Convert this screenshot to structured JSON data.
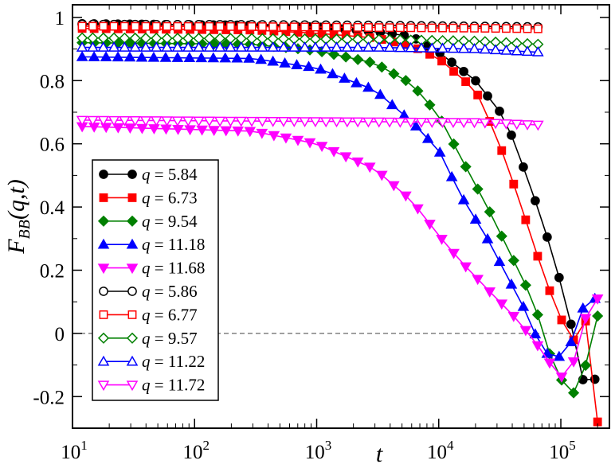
{
  "chart_data": {
    "type": "line",
    "title": "",
    "xlabel": "t",
    "ylabel": "F_BB(q,t)",
    "ylabel_main": "F",
    "ylabel_sub": "BB",
    "ylabel_args": "(q,t)",
    "xscale": "log",
    "xlim": [
      10,
      250000
    ],
    "ylim": [
      -0.3,
      1.04
    ],
    "grid": false,
    "reference_line": {
      "y": 0,
      "style": "dashed",
      "color": "#666666"
    },
    "legend_position": "lower-left",
    "x_ticks": [
      {
        "value": 10,
        "base": "10",
        "exp": "1"
      },
      {
        "value": 100,
        "base": "10",
        "exp": "2"
      },
      {
        "value": 1000,
        "base": "10",
        "exp": "3"
      },
      {
        "value": 10000,
        "base": "10",
        "exp": "4"
      },
      {
        "value": 100000,
        "base": "10",
        "exp": "5"
      }
    ],
    "y_ticks": [
      {
        "value": -0.2,
        "label": "-0.2"
      },
      {
        "value": 0,
        "label": "0"
      },
      {
        "value": 0.2,
        "label": "0.2"
      },
      {
        "value": 0.4,
        "label": "0.4"
      },
      {
        "value": 0.6,
        "label": "0.6"
      },
      {
        "value": 0.8,
        "label": "0.8"
      },
      {
        "value": 1,
        "label": "1"
      }
    ],
    "series": [
      {
        "name": "q = 5.84",
        "q": "5.84",
        "color": "#000000",
        "marker": "circle",
        "filled": true,
        "x_start": 12,
        "x_end": 190000,
        "anchors": [
          [
            12,
            0.98
          ],
          [
            300,
            0.975
          ],
          [
            1000,
            0.97
          ],
          [
            3000,
            0.955
          ],
          [
            6000,
            0.94
          ],
          [
            10000,
            0.89
          ],
          [
            20000,
            0.8
          ],
          [
            35000,
            0.68
          ],
          [
            50000,
            0.52
          ],
          [
            70000,
            0.36
          ],
          [
            90000,
            0.22
          ],
          [
            110000,
            0.1
          ],
          [
            135000,
            -0.05
          ],
          [
            160000,
            -0.19
          ],
          [
            190000,
            -0.145
          ]
        ]
      },
      {
        "name": "q = 6.73",
        "q": "6.73",
        "color": "#ff0000",
        "marker": "square",
        "filled": true,
        "x_start": 12,
        "x_end": 200000,
        "anchors": [
          [
            12,
            0.965
          ],
          [
            300,
            0.96
          ],
          [
            1000,
            0.95
          ],
          [
            3000,
            0.935
          ],
          [
            6000,
            0.91
          ],
          [
            10000,
            0.87
          ],
          [
            20000,
            0.77
          ],
          [
            30000,
            0.62
          ],
          [
            45000,
            0.43
          ],
          [
            60000,
            0.28
          ],
          [
            80000,
            0.14
          ],
          [
            100000,
            0.05
          ],
          [
            120000,
            -0.04
          ],
          [
            155000,
            0.045
          ],
          [
            175000,
            0.02
          ],
          [
            200000,
            -0.28
          ]
        ]
      },
      {
        "name": "q = 9.54",
        "q": "9.54",
        "color": "#008000",
        "marker": "diamond",
        "filled": true,
        "x_start": 12,
        "x_end": 200000,
        "anchors": [
          [
            12,
            0.92
          ],
          [
            300,
            0.915
          ],
          [
            1000,
            0.895
          ],
          [
            3000,
            0.855
          ],
          [
            6000,
            0.79
          ],
          [
            10000,
            0.69
          ],
          [
            15000,
            0.56
          ],
          [
            25000,
            0.4
          ],
          [
            40000,
            0.24
          ],
          [
            60000,
            0.1
          ],
          [
            80000,
            -0.06
          ],
          [
            105000,
            -0.16
          ],
          [
            125000,
            -0.195
          ],
          [
            160000,
            -0.1
          ],
          [
            200000,
            0.055
          ]
        ]
      },
      {
        "name": "q = 11.18",
        "q": "11.18",
        "color": "#0000ff",
        "marker": "triangle-up",
        "filled": true,
        "x_start": 12,
        "x_end": 190000,
        "anchors": [
          [
            12,
            0.875
          ],
          [
            300,
            0.87
          ],
          [
            1000,
            0.84
          ],
          [
            3000,
            0.77
          ],
          [
            6000,
            0.67
          ],
          [
            10000,
            0.58
          ],
          [
            15000,
            0.44
          ],
          [
            25000,
            0.3
          ],
          [
            40000,
            0.15
          ],
          [
            55000,
            0.05
          ],
          [
            70000,
            -0.06
          ],
          [
            100000,
            -0.075
          ],
          [
            130000,
            -0.01
          ],
          [
            160000,
            0.11
          ],
          [
            190000,
            0.11
          ]
        ]
      },
      {
        "name": "q = 11.68",
        "q": "11.68",
        "color": "#ff00ff",
        "marker": "triangle-down",
        "filled": true,
        "x_start": 12,
        "x_end": 200000,
        "anchors": [
          [
            12,
            0.655
          ],
          [
            300,
            0.64
          ],
          [
            1000,
            0.6
          ],
          [
            3000,
            0.52
          ],
          [
            6000,
            0.42
          ],
          [
            10000,
            0.31
          ],
          [
            15000,
            0.23
          ],
          [
            25000,
            0.14
          ],
          [
            40000,
            0.06
          ],
          [
            60000,
            -0.02
          ],
          [
            80000,
            -0.09
          ],
          [
            100000,
            -0.14
          ],
          [
            125000,
            -0.1
          ],
          [
            160000,
            0.05
          ],
          [
            200000,
            0.11
          ]
        ]
      },
      {
        "name": "q = 5.86",
        "q": "5.86",
        "color": "#000000",
        "marker": "circle",
        "filled": false,
        "x_start": 12,
        "x_end": 65000,
        "anchors": [
          [
            12,
            0.978
          ],
          [
            300,
            0.977
          ],
          [
            3000,
            0.975
          ],
          [
            20000,
            0.972
          ],
          [
            65000,
            0.97
          ]
        ]
      },
      {
        "name": "q = 6.77",
        "q": "6.77",
        "color": "#ff0000",
        "marker": "square",
        "filled": false,
        "x_start": 12,
        "x_end": 65000,
        "anchors": [
          [
            12,
            0.972
          ],
          [
            300,
            0.971
          ],
          [
            3000,
            0.968
          ],
          [
            20000,
            0.966
          ],
          [
            65000,
            0.964
          ]
        ]
      },
      {
        "name": "q = 9.57",
        "q": "9.57",
        "color": "#008000",
        "marker": "diamond",
        "filled": false,
        "x_start": 12,
        "x_end": 65000,
        "anchors": [
          [
            12,
            0.935
          ],
          [
            300,
            0.933
          ],
          [
            3000,
            0.93
          ],
          [
            20000,
            0.925
          ],
          [
            65000,
            0.915
          ]
        ]
      },
      {
        "name": "q = 11.22",
        "q": "11.22",
        "color": "#0000ff",
        "marker": "triangle-up",
        "filled": false,
        "x_start": 12,
        "x_end": 65000,
        "anchors": [
          [
            12,
            0.905
          ],
          [
            300,
            0.905
          ],
          [
            3000,
            0.905
          ],
          [
            20000,
            0.9
          ],
          [
            65000,
            0.89
          ]
        ]
      },
      {
        "name": "q = 11.72",
        "q": "11.72",
        "color": "#ff00ff",
        "marker": "triangle-down",
        "filled": false,
        "x_start": 12,
        "x_end": 65000,
        "anchors": [
          [
            12,
            0.675
          ],
          [
            300,
            0.672
          ],
          [
            3000,
            0.67
          ],
          [
            20000,
            0.668
          ],
          [
            65000,
            0.66
          ]
        ]
      }
    ]
  }
}
